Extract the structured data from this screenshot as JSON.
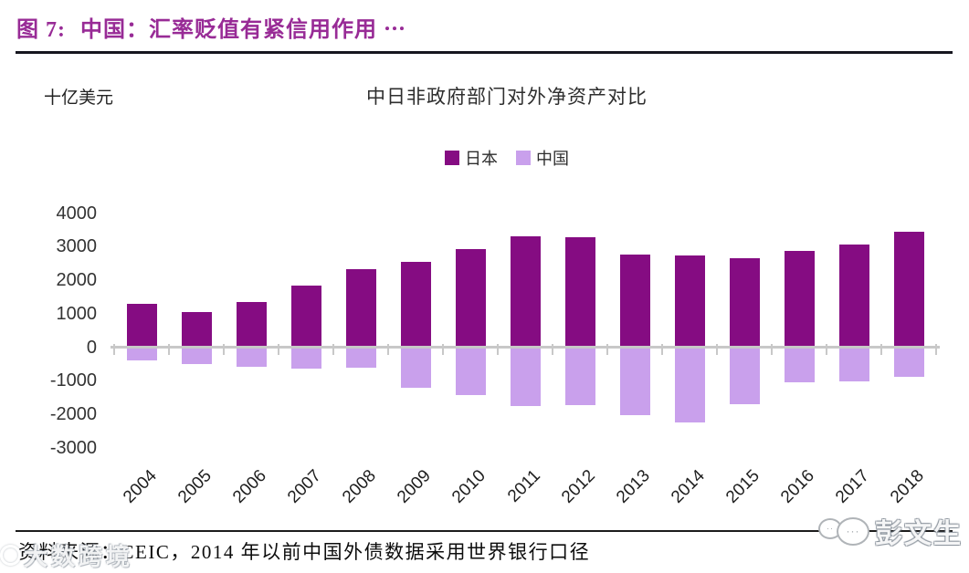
{
  "header": {
    "figure_label": "图 7:",
    "title": "中国：汇率贬值有紧信用作用 ⋯",
    "accent_color": "#982b96"
  },
  "chart": {
    "unit_label": "十亿美元"
  },
  "chart_data": {
    "type": "bar",
    "title": "中日非政府部门对外净资产对比",
    "ylabel": "十亿美元",
    "categories": [
      "2004",
      "2005",
      "2006",
      "2007",
      "2008",
      "2009",
      "2010",
      "2011",
      "2012",
      "2013",
      "2014",
      "2015",
      "2016",
      "2017",
      "2018"
    ],
    "series": [
      {
        "name": "日本",
        "color": "#850c82",
        "values": [
          1300,
          1060,
          1360,
          1850,
          2330,
          2570,
          2930,
          3330,
          3290,
          2790,
          2740,
          2660,
          2900,
          3090,
          3470
        ]
      },
      {
        "name": "中国",
        "color": "#c9a0ec",
        "values": [
          -350,
          -470,
          -550,
          -600,
          -560,
          -1160,
          -1400,
          -1720,
          -1700,
          -2000,
          -2200,
          -1660,
          -1000,
          -980,
          -840
        ]
      }
    ],
    "ylim": [
      -3000,
      4000
    ],
    "yticks": [
      4000,
      3000,
      2000,
      1000,
      0,
      -1000,
      -2000,
      -3000
    ],
    "grid": false,
    "legend_position": "top",
    "axis_color": "#c8c8c8"
  },
  "footer": {
    "source": "资料来源：CEIC，2014 年以前中国外债数据采用世界银行口径"
  },
  "watermarks": {
    "bottom_left": "大数跨境",
    "bottom_right": "彭文生",
    "bubble_dots_small": "··",
    "bubble_dots_big": "···"
  }
}
